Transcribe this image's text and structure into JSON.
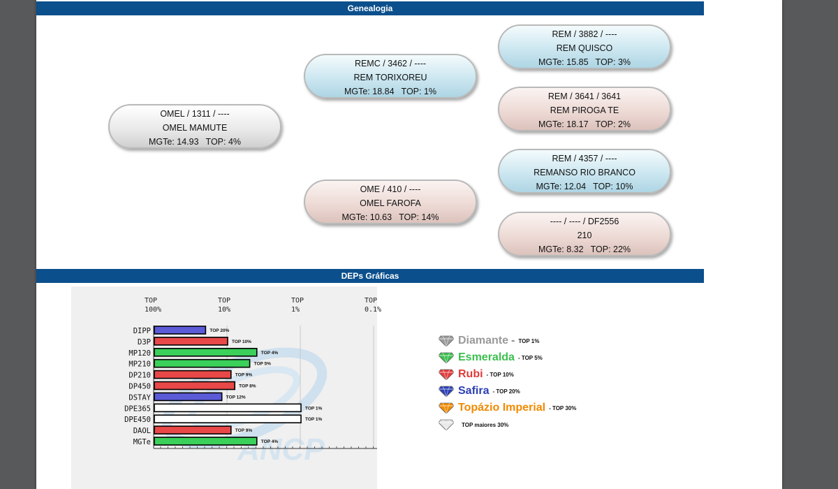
{
  "sections": {
    "genealogia": "Genealogia",
    "deps": "DEPs Gráficas"
  },
  "pedigree": [
    {
      "id": "sire",
      "kind": "neutral",
      "line1": "OMEL / 1311 / ----",
      "line2": "OMEL MAMUTE",
      "mgte": "MGTe: 14.93",
      "top": "TOP: 4%"
    },
    {
      "id": "ps",
      "kind": "male",
      "line1": "REMC / 3462 / ----",
      "line2": "REM TORIXOREU",
      "mgte": "MGTe: 18.84",
      "top": "TOP: 1%"
    },
    {
      "id": "pd",
      "kind": "female",
      "line1": "OME / 410 / ----",
      "line2": "OMEL FAROFA",
      "mgte": "MGTe: 10.63",
      "top": "TOP: 14%"
    },
    {
      "id": "pss",
      "kind": "male",
      "line1": "REM / 3882 / ----",
      "line2": "REM QUISCO",
      "mgte": "MGTe: 15.85",
      "top": "TOP: 3%"
    },
    {
      "id": "psd",
      "kind": "female",
      "line1": "REM / 3641 / 3641",
      "line2": "REM PIROGA TE",
      "mgte": "MGTe: 18.17",
      "top": "TOP: 2%"
    },
    {
      "id": "pds",
      "kind": "male",
      "line1": "REM / 4357 / ----",
      "line2": "REMANSO RIO BRANCO",
      "mgte": "MGTe: 12.04",
      "top": "TOP: 10%"
    },
    {
      "id": "pdd",
      "kind": "female",
      "line1": "---- / ---- / DF2556",
      "line2": "210",
      "mgte": "MGTe: 8.32",
      "top": "TOP: 22%"
    }
  ],
  "chart_data": {
    "type": "bar",
    "orientation": "horizontal",
    "column_headers": [
      "TOP 100%",
      "TOP 10%",
      "TOP 1%",
      "TOP 0.1%"
    ],
    "categories": [
      "DIPP",
      "D3P",
      "MP120",
      "MP210",
      "DP210",
      "DP450",
      "DSTAY",
      "DPE365",
      "DPE450",
      "DAOL",
      "MGTe"
    ],
    "values": [
      20,
      10,
      4,
      5,
      9,
      8,
      12,
      1,
      1,
      9,
      4
    ],
    "value_labels": [
      "TOP 20%",
      "TOP 10%",
      "TOP 4%",
      "TOP 5%",
      "TOP 9%",
      "TOP 8%",
      "TOP 12%",
      "TOP 1%",
      "TOP 1%",
      "TOP 9%",
      "TOP 4%"
    ],
    "bar_classes": [
      "safira",
      "rubi",
      "esmeralda",
      "esmeralda",
      "rubi",
      "rubi",
      "safira",
      "diamante",
      "diamante",
      "rubi",
      "esmeralda"
    ],
    "xscale": "log (TOP %)",
    "xlim": [
      100,
      0.1
    ],
    "grid": true
  },
  "watermark": "ANCP",
  "class_colors": {
    "diamante": "#9a9a9a",
    "esmeralda": "#3bbf4f",
    "rubi": "#e23a3a",
    "safira": "#2a3fb5",
    "topazio": "#f08a00",
    "none": "#e6e6e6",
    "bar_diamante": "#ffffff",
    "bar_esmeralda": "#3ad05a",
    "bar_rubi": "#e84848",
    "bar_safira": "#5b5bd8"
  },
  "legend": [
    {
      "name": "Diamante",
      "dash": "-",
      "top": "TOP 1%",
      "color": "#9a9a9a",
      "icon": "diamond-gem-icon"
    },
    {
      "name": "Esmeralda",
      "dash": "",
      "top": "- TOP 5%",
      "color": "#3bbf4f",
      "icon": "emerald-gem-icon"
    },
    {
      "name": "Rubi",
      "dash": "",
      "top": "- TOP 10%",
      "color": "#e23a3a",
      "icon": "ruby-gem-icon"
    },
    {
      "name": "Safira",
      "dash": "",
      "top": "- TOP 20%",
      "color": "#2a3fb5",
      "icon": "sapphire-gem-icon"
    },
    {
      "name": "Topázio Imperial",
      "dash": "",
      "top": "- TOP 30%",
      "color": "#f08a00",
      "icon": "topaz-gem-icon"
    },
    {
      "name": "",
      "dash": "",
      "top": "TOP maiores 30%",
      "color": "#e6e6e6",
      "icon": "white-gem-icon"
    }
  ]
}
